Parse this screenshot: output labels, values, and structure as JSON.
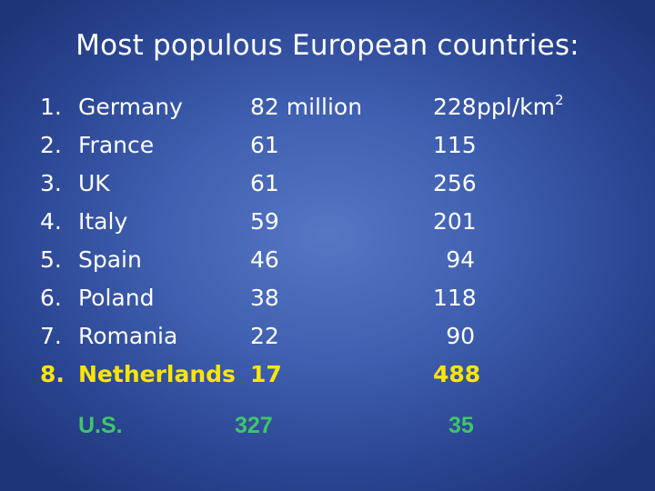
{
  "title": "Most populous European countries:",
  "rows": [
    {
      "num": "1.",
      "country": "Germany",
      "population": "82 million",
      "density": "228",
      "unit": "ppl/km",
      "unit_sup": "2"
    },
    {
      "num": "2.",
      "country": "France",
      "population": "61",
      "density": "115"
    },
    {
      "num": "3.",
      "country": "UK",
      "population": "61",
      "density": "256"
    },
    {
      "num": "4.",
      "country": "Italy",
      "population": "59",
      "density": "201"
    },
    {
      "num": "5.",
      "country": "Spain",
      "population": "46",
      "density": "94"
    },
    {
      "num": "6.",
      "country": "Poland",
      "population": "38",
      "density": "118"
    },
    {
      "num": "7.",
      "country": "Romania",
      "population": "22",
      "density": "90"
    },
    {
      "num": "8.",
      "country": "Netherlands",
      "population": "17",
      "density": "488"
    }
  ],
  "us": {
    "name": "U.S.",
    "population": "327",
    "density": "35"
  },
  "colors": {
    "highlight": "#ffe600",
    "us": "#3ec66a",
    "text": "#ffffff",
    "background": "#3f5fb0"
  }
}
